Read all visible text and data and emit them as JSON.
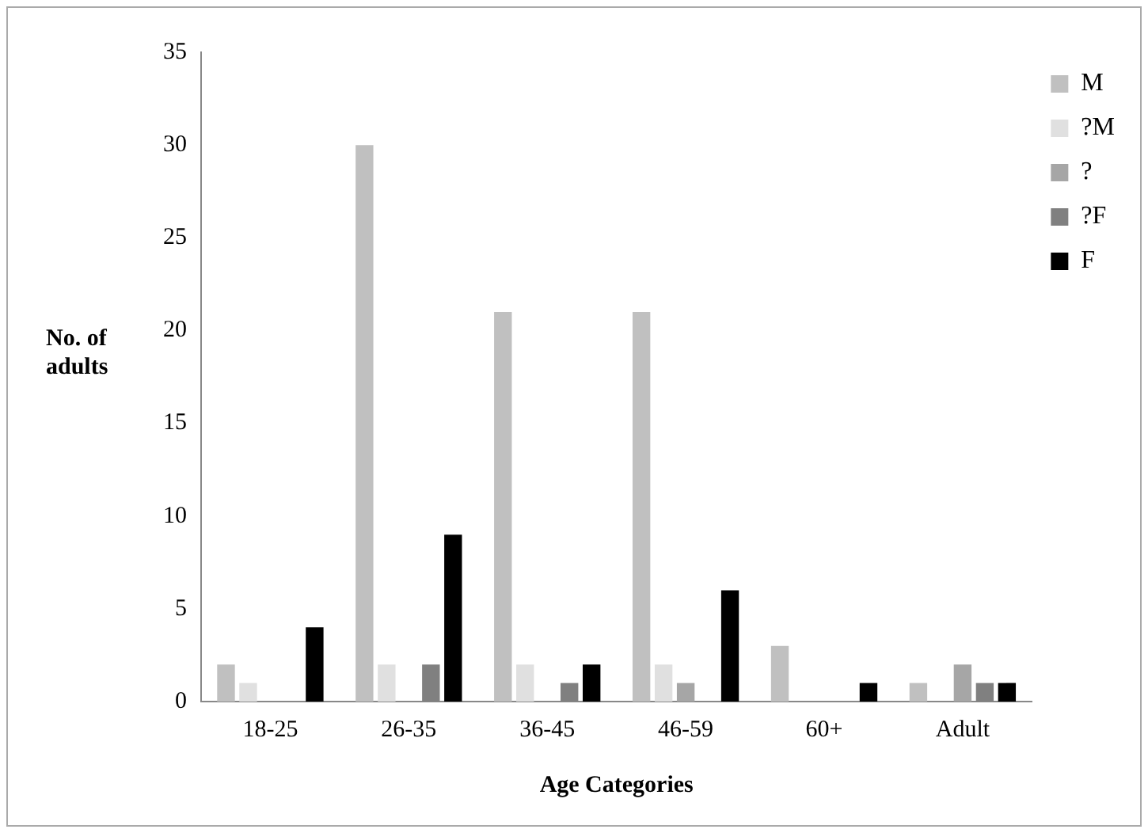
{
  "chart_data": {
    "type": "bar",
    "xlabel": "Age Categories",
    "ylabel": "No. of adults",
    "categories": [
      "18-25",
      "26-35",
      "36-45",
      "46-59",
      "60+",
      "Adult"
    ],
    "series": [
      {
        "name": "M",
        "color": "#c0c0c0",
        "values": [
          2,
          30,
          21,
          21,
          3,
          1
        ]
      },
      {
        "name": "?M",
        "color": "#e0e0e0",
        "values": [
          1,
          2,
          2,
          2,
          0,
          0
        ]
      },
      {
        "name": "?",
        "color": "#a6a6a6",
        "values": [
          0,
          0,
          0,
          1,
          0,
          2
        ]
      },
      {
        "name": "?F",
        "color": "#808080",
        "values": [
          0,
          2,
          1,
          0,
          0,
          1
        ]
      },
      {
        "name": "F",
        "color": "#000000",
        "values": [
          4,
          9,
          2,
          6,
          1,
          1
        ]
      }
    ],
    "ylim": [
      0,
      35
    ],
    "yticks": [
      0,
      5,
      10,
      15,
      20,
      25,
      30,
      35
    ],
    "grid": false,
    "legend": "top right"
  }
}
